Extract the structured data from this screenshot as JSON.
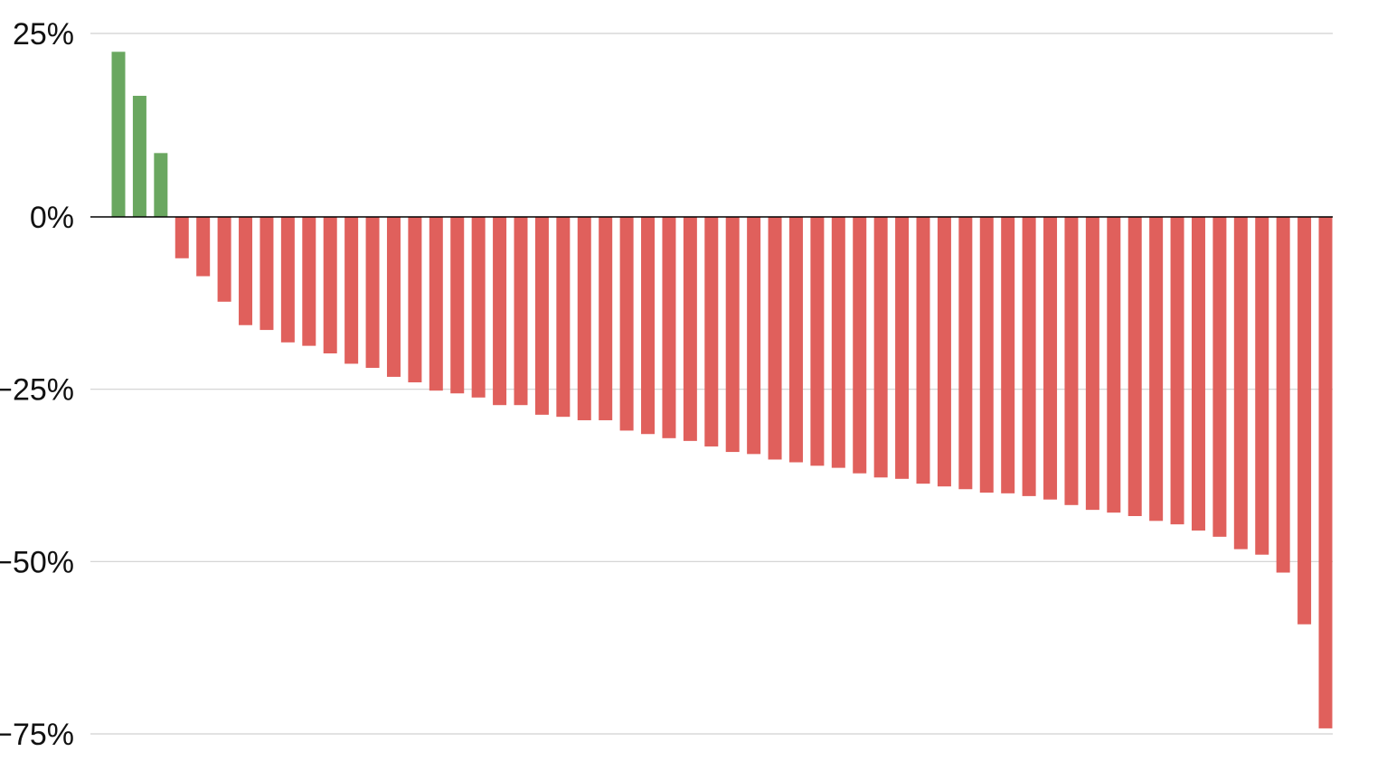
{
  "chart_data": {
    "type": "bar",
    "title": "",
    "xlabel": "",
    "ylabel": "",
    "ylim": [
      -75,
      25
    ],
    "grid": true,
    "yticks": [
      25,
      0,
      -25,
      -50,
      -75
    ],
    "ytick_labels": [
      "25%",
      "0%",
      "-25%",
      "-50%",
      "-75%"
    ],
    "colors": {
      "positive": "#6aa760",
      "negative": "#e0605c",
      "grid": "#d0d0d0",
      "zero_line": "#000000"
    },
    "values": [
      22.5,
      16.5,
      8.7,
      -6.0,
      -8.6,
      -12.3,
      -15.7,
      -16.4,
      -18.2,
      -18.7,
      -19.8,
      -21.3,
      -21.9,
      -23.2,
      -24.0,
      -25.2,
      -25.6,
      -26.2,
      -27.3,
      -27.3,
      -28.7,
      -29.0,
      -29.5,
      -29.5,
      -31.0,
      -31.5,
      -32.1,
      -32.5,
      -33.3,
      -34.1,
      -34.4,
      -35.2,
      -35.6,
      -36.1,
      -36.4,
      -37.2,
      -37.8,
      -38.0,
      -38.7,
      -39.1,
      -39.5,
      -40.0,
      -40.1,
      -40.5,
      -41.0,
      -41.8,
      -42.5,
      -42.9,
      -43.4,
      -44.1,
      -44.6,
      -45.5,
      -46.4,
      -48.2,
      -49.0,
      -51.6,
      -59.1,
      -74.2
    ]
  }
}
